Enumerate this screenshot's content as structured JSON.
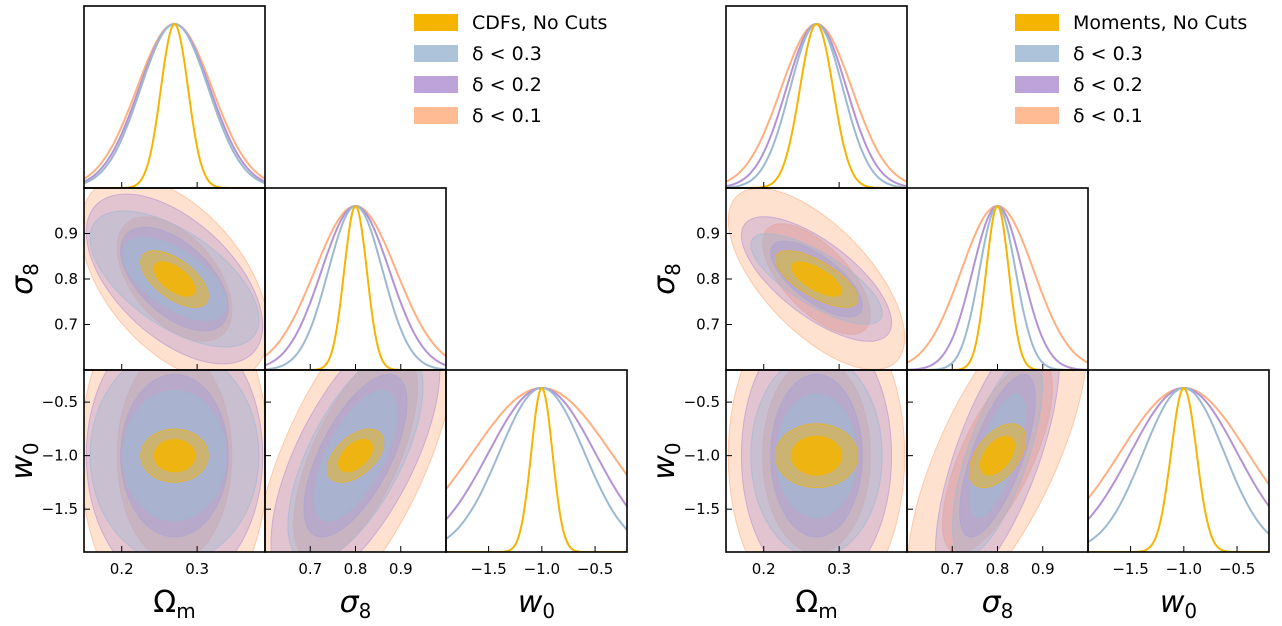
{
  "colors": {
    "no_cuts": "#F5B400",
    "d03": "#9DB9D2",
    "d02": "#B393D3",
    "d01": "#FFAF80"
  },
  "chart_data": [
    {
      "type": "corner-plot",
      "parameters": [
        {
          "symbol": "Ωm",
          "label": "Ω",
          "label_sub": "m",
          "range": [
            0.15,
            0.39
          ],
          "ticks": [
            0.2,
            0.3
          ],
          "tick_labels": [
            "0.2",
            "0.3"
          ],
          "fiducial": 0.27
        },
        {
          "symbol": "σ8",
          "label": "σ",
          "label_sub": "8",
          "range": [
            0.6,
            1.0
          ],
          "ticks": [
            0.7,
            0.8,
            0.9
          ],
          "tick_labels": [
            "0.7",
            "0.8",
            "0.9"
          ],
          "fiducial": 0.8
        },
        {
          "symbol": "w0",
          "label": "w",
          "label_sub": "0",
          "range": [
            -1.9,
            -0.2
          ],
          "ticks": [
            -1.5,
            -1.0,
            -0.5
          ],
          "tick_labels": [
            "−1.5",
            "−1.0",
            "−0.5"
          ],
          "fiducial": -1.0
        }
      ],
      "legend": [
        "CDFs, No Cuts",
        "δ < 0.3",
        "δ < 0.2",
        "δ < 0.1"
      ],
      "series": [
        {
          "key": "no_cuts",
          "sigma": [
            0.018,
            0.025,
            0.1
          ],
          "rho": [
            -0.6,
            0.5,
            0.0
          ]
        },
        {
          "key": "d03",
          "sigma": [
            0.045,
            0.06,
            0.4
          ],
          "rho": [
            -0.6,
            0.65,
            0.0
          ]
        },
        {
          "key": "d02",
          "sigma": [
            0.047,
            0.075,
            0.5
          ],
          "rho": [
            -0.55,
            0.65,
            0.0
          ]
        },
        {
          "key": "d01",
          "sigma": [
            0.05,
            0.09,
            0.65
          ],
          "rho": [
            -0.5,
            0.65,
            0.0
          ]
        }
      ]
    },
    {
      "type": "corner-plot",
      "parameters": [
        {
          "symbol": "Ωm",
          "label": "Ω",
          "label_sub": "m",
          "range": [
            0.15,
            0.39
          ],
          "ticks": [
            0.2,
            0.3
          ],
          "tick_labels": [
            "0.2",
            "0.3"
          ],
          "fiducial": 0.27
        },
        {
          "symbol": "σ8",
          "label": "σ",
          "label_sub": "8",
          "range": [
            0.6,
            1.0
          ],
          "ticks": [
            0.7,
            0.8,
            0.9
          ],
          "tick_labels": [
            "0.7",
            "0.8",
            "0.9"
          ],
          "fiducial": 0.8
        },
        {
          "symbol": "w0",
          "label": "w",
          "label_sub": "0",
          "range": [
            -1.9,
            -0.2
          ],
          "ticks": [
            -1.5,
            -1.0,
            -0.5
          ],
          "tick_labels": [
            "−1.5",
            "−1.0",
            "−0.5"
          ],
          "fiducial": -1.0
        }
      ],
      "legend": [
        "Moments, No Cuts",
        "δ < 0.3",
        "δ < 0.2",
        "δ < 0.1"
      ],
      "series": [
        {
          "key": "no_cuts",
          "sigma": [
            0.022,
            0.025,
            0.12
          ],
          "rho": [
            -0.7,
            0.5,
            0.0
          ]
        },
        {
          "key": "d03",
          "sigma": [
            0.035,
            0.04,
            0.38
          ],
          "rho": [
            -0.75,
            0.7,
            0.0
          ]
        },
        {
          "key": "d02",
          "sigma": [
            0.04,
            0.055,
            0.5
          ],
          "rho": [
            -0.7,
            0.7,
            0.0
          ]
        },
        {
          "key": "d01",
          "sigma": [
            0.047,
            0.08,
            0.6
          ],
          "rho": [
            -0.65,
            0.7,
            0.0
          ]
        }
      ]
    }
  ]
}
